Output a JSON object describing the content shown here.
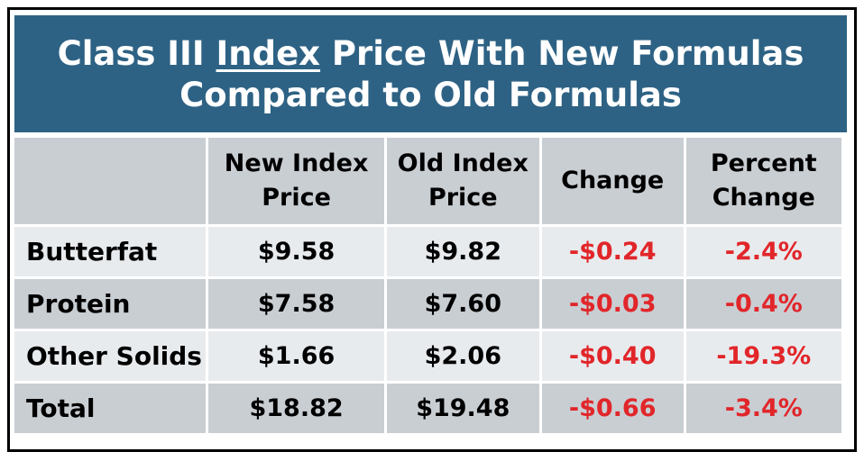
{
  "title": {
    "line1_pre": "Class III ",
    "line1_underlined": "Index",
    "line1_post": " Price With New Formulas",
    "line2": "Compared to Old Formulas"
  },
  "table": {
    "headers": [
      {
        "line1": "",
        "line2": ""
      },
      {
        "line1": "New Index",
        "line2": "Price"
      },
      {
        "line1": "Old Index",
        "line2": "Price"
      },
      {
        "line1": "Change",
        "line2": ""
      },
      {
        "line1": "Percent",
        "line2": "Change"
      }
    ],
    "rows": [
      {
        "label": "Butterfat",
        "new_price": "$9.58",
        "old_price": "$9.82",
        "change": "-$0.24",
        "percent_change": "-2.4%"
      },
      {
        "label": "Protein",
        "new_price": "$7.58",
        "old_price": "$7.60",
        "change": "-$0.03",
        "percent_change": "-0.4%"
      },
      {
        "label": "Other Solids",
        "new_price": "$1.66",
        "old_price": "$2.06",
        "change": "-$0.40",
        "percent_change": "-19.3%"
      },
      {
        "label": "Total",
        "new_price": "$18.82",
        "old_price": "$19.48",
        "change": "-$0.66",
        "percent_change": "-3.4%"
      }
    ]
  },
  "colors": {
    "title_background": "#2e6284",
    "title_text": "#ffffff",
    "header_background": "#c9ced3",
    "row_light": "#e8ebee",
    "row_dark": "#c9ced3",
    "negative_text": "#e1262a"
  }
}
